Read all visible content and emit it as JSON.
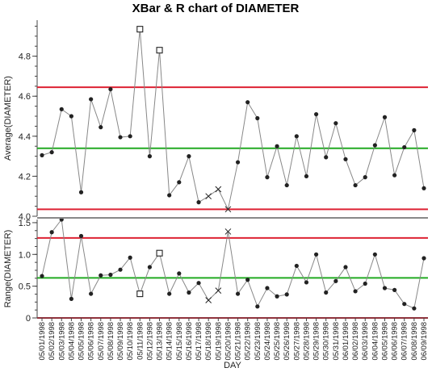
{
  "chart_data": {
    "type": "line",
    "title": "XBar & R chart of DIAMETER",
    "xlabel": "DAY",
    "categories": [
      "05/01/1998",
      "05/02/1998",
      "05/03/1998",
      "05/04/1998",
      "05/05/1998",
      "05/06/1998",
      "05/07/1998",
      "05/08/1998",
      "05/09/1998",
      "05/10/1998",
      "05/11/1998",
      "05/12/1998",
      "05/13/1998",
      "05/14/1998",
      "05/15/1998",
      "05/16/1998",
      "05/17/1998",
      "05/18/1998",
      "05/19/1998",
      "05/20/1998",
      "05/21/1998",
      "05/22/1998",
      "05/23/1998",
      "05/24/1998",
      "05/25/1998",
      "05/26/1998",
      "05/27/1998",
      "05/28/1998",
      "05/29/1998",
      "05/30/1998",
      "05/31/1998",
      "06/01/1998",
      "06/02/1998",
      "06/03/1998",
      "06/04/1998",
      "06/05/1998",
      "06/06/1998",
      "06/07/1998",
      "06/08/1998",
      "06/09/1998"
    ],
    "panels": [
      {
        "ylabel": "Average(DIAMETER)",
        "ylim": [
          4.0,
          4.98
        ],
        "yticks": [
          "4.0",
          "4.2",
          "4.4",
          "4.6",
          "4.8"
        ],
        "ytick_values": [
          4.0,
          4.2,
          4.4,
          4.6,
          4.8
        ],
        "center_line": 4.34,
        "upper_limit": 4.645,
        "lower_limit": 4.035,
        "values": [
          4.305,
          4.32,
          4.535,
          4.5,
          4.12,
          4.585,
          4.445,
          4.635,
          4.395,
          4.4,
          4.935,
          4.3,
          4.83,
          4.105,
          4.17,
          4.3,
          4.07,
          4.1,
          4.135,
          4.035,
          4.27,
          4.57,
          4.49,
          4.195,
          4.35,
          4.155,
          4.4,
          4.2,
          4.51,
          4.295,
          4.465,
          4.285,
          4.155,
          4.195,
          4.355,
          4.495,
          4.205,
          4.345,
          4.43,
          4.14
        ],
        "markers": [
          "dot",
          "dot",
          "dot",
          "dot",
          "dot",
          "dot",
          "dot",
          "dot",
          "dot",
          "dot",
          "square",
          "dot",
          "square",
          "dot",
          "dot",
          "dot",
          "dot",
          "x",
          "x",
          "x",
          "dot",
          "dot",
          "dot",
          "dot",
          "dot",
          "dot",
          "dot",
          "dot",
          "dot",
          "dot",
          "dot",
          "dot",
          "dot",
          "dot",
          "dot",
          "dot",
          "dot",
          "dot",
          "dot",
          "dot"
        ]
      },
      {
        "ylabel": "Range(DIAMETER)",
        "ylim": [
          0,
          1.55
        ],
        "yticks": [
          "0",
          "0.5",
          "1.0",
          "1.5"
        ],
        "ytick_values": [
          0,
          0.5,
          1.0,
          1.5
        ],
        "center_line": 0.63,
        "upper_limit": 1.26,
        "lower_limit": 0.0,
        "values": [
          0.66,
          1.35,
          1.55,
          0.3,
          1.29,
          0.38,
          0.67,
          0.68,
          0.76,
          0.95,
          0.38,
          0.8,
          1.02,
          0.38,
          0.7,
          0.4,
          0.55,
          0.28,
          0.43,
          1.36,
          0.38,
          0.6,
          0.18,
          0.47,
          0.34,
          0.37,
          0.82,
          0.56,
          1.0,
          0.4,
          0.58,
          0.8,
          0.42,
          0.54,
          1.0,
          0.47,
          0.44,
          0.22,
          0.15,
          0.94
        ],
        "markers": [
          "dot",
          "dot",
          "dot",
          "dot",
          "dot",
          "dot",
          "dot",
          "dot",
          "dot",
          "dot",
          "square",
          "dot",
          "square",
          "dot",
          "dot",
          "dot",
          "dot",
          "x",
          "x",
          "x",
          "dot",
          "dot",
          "dot",
          "dot",
          "dot",
          "dot",
          "dot",
          "dot",
          "dot",
          "dot",
          "dot",
          "dot",
          "dot",
          "dot",
          "dot",
          "dot",
          "dot",
          "dot",
          "dot",
          "dot"
        ]
      }
    ],
    "colors": {
      "center_line": "#22aa22",
      "limit_line": "#dd2233",
      "data_line": "#888888",
      "marker": "#222222",
      "divider": "#888888"
    }
  }
}
